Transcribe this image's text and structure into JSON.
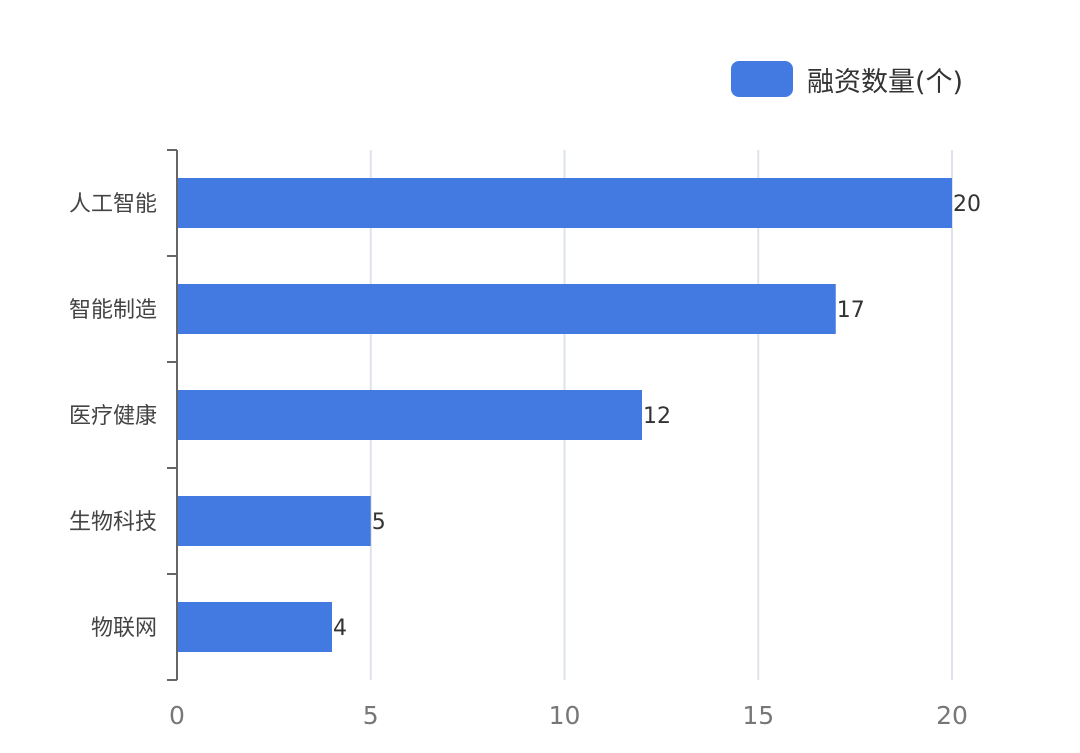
{
  "chart_data": {
    "type": "bar",
    "orientation": "horizontal",
    "categories": [
      "人工智能",
      "智能制造",
      "医疗健康",
      "生物科技",
      "物联网"
    ],
    "series": [
      {
        "name": "融资数量(个)",
        "values": [
          20,
          17,
          12,
          5,
          4
        ],
        "color": "#427ae2"
      }
    ],
    "xticks": [
      0,
      5,
      10,
      15,
      20
    ],
    "xlim": [
      0,
      20
    ],
    "grid": true,
    "legend_position": "top-right",
    "data_labels": true
  }
}
